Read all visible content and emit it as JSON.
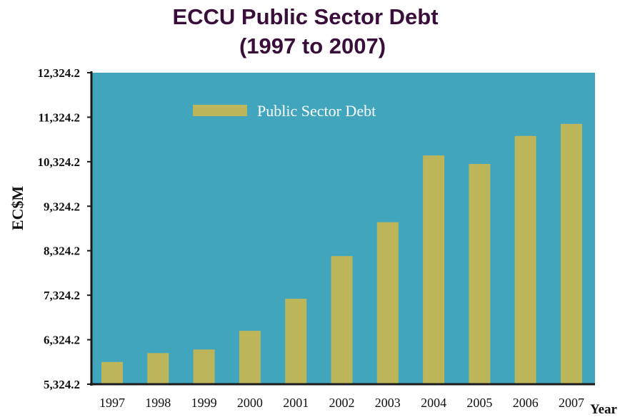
{
  "chart_data": {
    "type": "bar",
    "title": "ECCU Public Sector Debt",
    "subtitle": "(1997 to 2007)",
    "xlabel": "Year",
    "ylabel": "EC$M",
    "categories": [
      "1997",
      "1998",
      "1999",
      "2000",
      "2001",
      "2002",
      "2003",
      "2004",
      "2005",
      "2006",
      "2007"
    ],
    "series": [
      {
        "name": "Public Sector Debt",
        "values": [
          5824.2,
          6024.2,
          6104.2,
          6524.2,
          7244.2,
          8204.2,
          8964.2,
          10464.2,
          10274.2,
          10904.2,
          11174.2
        ]
      }
    ],
    "ylim": [
      5324.2,
      12324.2
    ],
    "yticks": [
      "5,324.2",
      "6,324.2",
      "7,324.2",
      "8,324.2",
      "9,324.2",
      "10,324.2",
      "11,324.2",
      "12,324.2"
    ],
    "legend": "top-center",
    "grid": false,
    "colors": {
      "plot_background": "#41a5be",
      "bar": "#bcb55a",
      "axis": "#1a1a1a",
      "title": "#3a0e3a",
      "legend_text": "#ffffff"
    }
  }
}
